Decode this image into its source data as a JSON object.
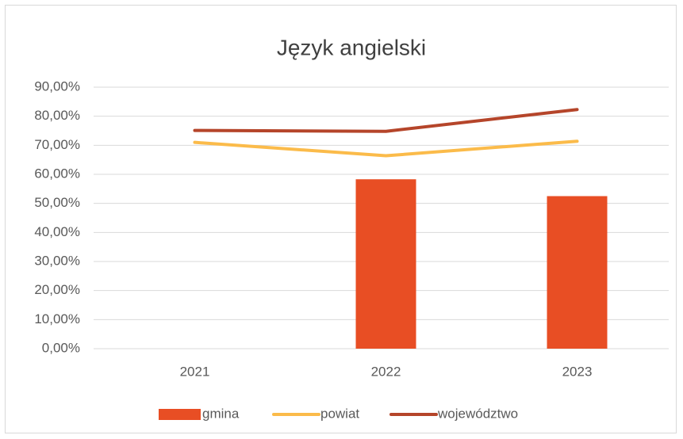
{
  "chart_data": {
    "type": "combo",
    "title": "Język angielski",
    "categories": [
      "2021",
      "2022",
      "2023"
    ],
    "series": [
      {
        "name": "gmina",
        "type": "bar",
        "color": "#e84e24",
        "values": [
          null,
          58.3,
          52.5
        ]
      },
      {
        "name": "powiat",
        "type": "line",
        "color": "#fbbb4a",
        "values": [
          71.0,
          66.4,
          71.4
        ]
      },
      {
        "name": "województwo",
        "type": "line",
        "color": "#b5452a",
        "values": [
          75.1,
          74.8,
          82.3
        ]
      }
    ],
    "ylim": [
      0,
      90
    ],
    "yticks": [
      {
        "value": 0,
        "label": "0,00%"
      },
      {
        "value": 10,
        "label": "10,00%"
      },
      {
        "value": 20,
        "label": "20,00%"
      },
      {
        "value": 30,
        "label": "30,00%"
      },
      {
        "value": 40,
        "label": "40,00%"
      },
      {
        "value": 50,
        "label": "50,00%"
      },
      {
        "value": 60,
        "label": "60,00%"
      },
      {
        "value": 70,
        "label": "70,00%"
      },
      {
        "value": 80,
        "label": "80,00%"
      },
      {
        "value": 90,
        "label": "90,00%"
      }
    ],
    "grid": true,
    "legend": "bottom"
  }
}
